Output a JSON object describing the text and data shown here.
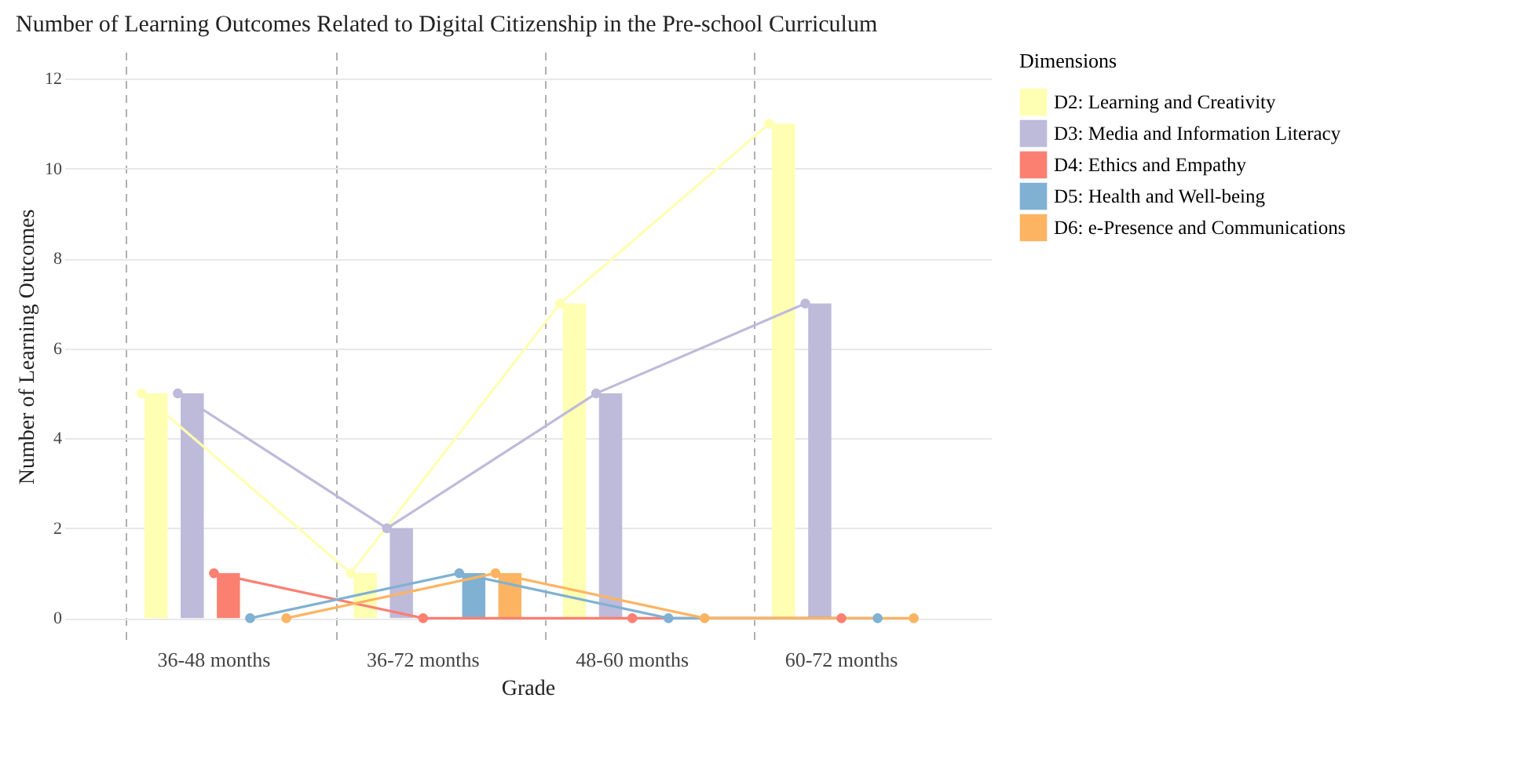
{
  "chart_data": {
    "type": "bar",
    "title": "Number of Learning Outcomes Related to Digital Citizenship in the Pre-school Curriculum",
    "xlabel": "Grade",
    "ylabel": "Number of Learning Outcomes",
    "legend_title": "Dimensions",
    "categories": [
      "36-48 months",
      "36-72 months",
      "48-60 months",
      "60-72 months"
    ],
    "series": [
      {
        "name": "D2: Learning and Creativity",
        "color": "#ffffb3",
        "values": [
          5,
          1,
          7,
          11
        ]
      },
      {
        "name": "D3: Media and Information Literacy",
        "color": "#bebada",
        "values": [
          5,
          2,
          5,
          7
        ]
      },
      {
        "name": "D4: Ethics and Empathy",
        "color": "#fb8072",
        "values": [
          1,
          0,
          0,
          0
        ]
      },
      {
        "name": "D5: Health and Well-being",
        "color": "#80b1d3",
        "values": [
          0,
          1,
          0,
          0
        ]
      },
      {
        "name": "D6: e-Presence and Communications",
        "color": "#fdb462",
        "values": [
          0,
          1,
          0,
          0
        ]
      },
      {
        "type": "line",
        "color": "#ffffb3",
        "values": [
          5,
          1,
          7,
          11
        ]
      },
      {
        "type": "line",
        "color": "#bebada",
        "values": [
          5,
          2,
          5,
          7
        ]
      },
      {
        "type": "line",
        "color": "#fb8072",
        "values": [
          1,
          0,
          0,
          0
        ]
      },
      {
        "type": "line",
        "color": "#80b1d3",
        "values": [
          0,
          1,
          0,
          0
        ]
      },
      {
        "type": "line",
        "color": "#fdb462",
        "values": [
          0,
          1,
          0,
          0
        ]
      }
    ],
    "ylim": [
      -0.5,
      12.6
    ],
    "yticks": [
      0,
      2,
      4,
      6,
      8,
      10,
      12
    ],
    "grid": true,
    "legend": "right",
    "marker": "circle"
  }
}
